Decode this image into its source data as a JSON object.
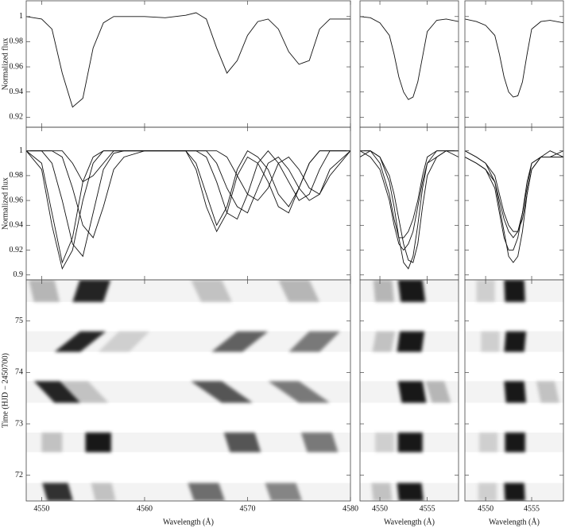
{
  "chart_data": [
    {
      "type": "line",
      "ylabel": "Normalized flux",
      "color": "#111111",
      "xlim": [
        4548.5,
        4580
      ],
      "xticks": [
        4550,
        4560,
        4570,
        4580
      ],
      "ylim": [
        0.912,
        1.0125
      ],
      "yticks": [
        0.92,
        0.94,
        0.96,
        0.98,
        1
      ],
      "x": [
        4548.5,
        4550,
        4551,
        4552,
        4553,
        4554,
        4555,
        4556,
        4557,
        4558,
        4560,
        4562,
        4564,
        4565,
        4566,
        4567,
        4568,
        4569,
        4570,
        4571,
        4572,
        4573,
        4574,
        4575,
        4576,
        4577,
        4578,
        4580
      ],
      "series": [
        {
          "values": [
            1,
            0.998,
            0.99,
            0.955,
            0.928,
            0.935,
            0.975,
            0.995,
            1,
            1,
            1,
            0.999,
            1.001,
            1.003,
            0.998,
            0.975,
            0.955,
            0.965,
            0.985,
            0.996,
            0.998,
            0.99,
            0.972,
            0.962,
            0.965,
            0.99,
            0.998,
            0.998
          ]
        }
      ]
    },
    {
      "type": "line",
      "color": "#111111",
      "xlim": [
        4547.9,
        4558.3
      ],
      "xticks": [
        4550,
        4555
      ],
      "ylim": [
        0.912,
        1.0125
      ],
      "yticks": [
        0.92,
        0.94,
        0.96,
        0.98,
        1
      ],
      "x": [
        4547.9,
        4549,
        4550,
        4551,
        4551.5,
        4552,
        4552.5,
        4553,
        4553.5,
        4554,
        4554.5,
        4555,
        4556,
        4557,
        4558.3
      ],
      "series": [
        {
          "values": [
            1,
            0.999,
            0.995,
            0.985,
            0.97,
            0.952,
            0.94,
            0.934,
            0.936,
            0.948,
            0.968,
            0.988,
            0.997,
            0.998,
            0.996
          ]
        }
      ]
    },
    {
      "type": "line",
      "color": "#111111",
      "xlim": [
        4547.75,
        4558.45
      ],
      "xticks": [
        4550,
        4555
      ],
      "ylim": [
        0.912,
        1.0125
      ],
      "yticks": [
        0.92,
        0.94,
        0.96,
        0.98,
        1
      ],
      "x": [
        4547.75,
        4549,
        4550,
        4551,
        4551.5,
        4552,
        4552.5,
        4553,
        4553.5,
        4554,
        4554.5,
        4555,
        4556,
        4557,
        4558.45
      ],
      "series": [
        {
          "values": [
            0.998,
            0.996,
            0.993,
            0.985,
            0.97,
            0.952,
            0.94,
            0.936,
            0.937,
            0.948,
            0.97,
            0.99,
            0.996,
            0.997,
            0.995
          ]
        }
      ]
    },
    {
      "type": "line",
      "ylabel": "Normalized flux",
      "color": "#111111",
      "xlim": [
        4548.5,
        4580
      ],
      "xticks": [
        4550,
        4560,
        4570,
        4580
      ],
      "ylim": [
        0.896,
        1.019
      ],
      "yticks": [
        0.9,
        0.92,
        0.94,
        0.96,
        0.98,
        1
      ],
      "x": [
        4548.5,
        4550,
        4551,
        4552,
        4553,
        4554,
        4555,
        4556,
        4557,
        4558,
        4560,
        4562,
        4564,
        4565,
        4566,
        4567,
        4568,
        4569,
        4570,
        4571,
        4572,
        4573,
        4574,
        4575,
        4576,
        4577,
        4578,
        4580
      ],
      "series": [
        {
          "values": [
            1,
            0.99,
            0.95,
            0.91,
            0.93,
            0.975,
            0.995,
            1,
            1,
            1,
            1,
            1,
            1,
            0.99,
            0.965,
            0.94,
            0.955,
            0.985,
            1,
            0.995,
            0.985,
            0.965,
            0.955,
            0.97,
            0.99,
            1,
            1,
            1
          ]
        },
        {
          "values": [
            1,
            1,
            0.99,
            0.96,
            0.925,
            0.915,
            0.95,
            0.985,
            0.998,
            1,
            1,
            1,
            1,
            1,
            0.995,
            0.975,
            0.95,
            0.945,
            0.965,
            0.99,
            1,
            0.99,
            0.975,
            0.96,
            0.965,
            0.985,
            1,
            1
          ]
        },
        {
          "values": [
            1,
            1,
            1,
            0.995,
            0.97,
            0.94,
            0.93,
            0.955,
            0.985,
            0.995,
            1,
            1,
            1,
            1,
            1,
            0.99,
            0.97,
            0.955,
            0.95,
            0.97,
            0.99,
            0.995,
            0.985,
            0.97,
            0.96,
            0.965,
            0.985,
            1
          ]
        },
        {
          "values": [
            1,
            0.985,
            0.94,
            0.905,
            0.92,
            0.96,
            0.99,
            1,
            1,
            1,
            1,
            1,
            1,
            0.985,
            0.955,
            0.935,
            0.95,
            0.98,
            0.995,
            0.99,
            0.975,
            0.955,
            0.95,
            0.97,
            0.99,
            1,
            1,
            1
          ]
        },
        {
          "values": [
            1,
            1,
            1,
            1,
            0.99,
            0.975,
            0.98,
            0.99,
            1,
            1,
            1,
            1,
            1,
            1,
            1,
            1,
            0.995,
            0.98,
            0.965,
            0.96,
            0.97,
            0.99,
            0.995,
            0.985,
            0.97,
            0.965,
            0.98,
            1
          ]
        }
      ]
    },
    {
      "type": "line",
      "color": "#111111",
      "xlim": [
        4547.9,
        4558.3
      ],
      "xticks": [
        4550,
        4555
      ],
      "ylim": [
        0.896,
        1.019
      ],
      "yticks": [
        0.9,
        0.92,
        0.94,
        0.96,
        0.98,
        1
      ],
      "x": [
        4547.9,
        4549,
        4550,
        4551,
        4551.5,
        4552,
        4552.5,
        4553,
        4553.5,
        4554,
        4554.5,
        4555,
        4556,
        4557,
        4558.3
      ],
      "series": [
        {
          "values": [
            1,
            1,
            0.995,
            0.975,
            0.955,
            0.93,
            0.91,
            0.905,
            0.915,
            0.94,
            0.97,
            0.99,
            1,
            1,
            1
          ]
        },
        {
          "values": [
            1,
            1,
            0.99,
            0.965,
            0.945,
            0.93,
            0.93,
            0.935,
            0.945,
            0.96,
            0.98,
            0.995,
            1,
            1,
            0.995
          ]
        },
        {
          "values": [
            1,
            0.995,
            0.985,
            0.96,
            0.94,
            0.925,
            0.92,
            0.925,
            0.935,
            0.955,
            0.975,
            0.99,
            0.995,
            1,
            1
          ]
        },
        {
          "values": [
            0.995,
            1,
            0.995,
            0.98,
            0.965,
            0.945,
            0.925,
            0.912,
            0.91,
            0.925,
            0.955,
            0.98,
            0.995,
            1,
            1
          ]
        }
      ]
    },
    {
      "type": "line",
      "color": "#111111",
      "xlim": [
        4547.75,
        4558.45
      ],
      "xticks": [
        4550,
        4555
      ],
      "ylim": [
        0.896,
        1.019
      ],
      "yticks": [
        0.9,
        0.92,
        0.94,
        0.96,
        0.98,
        1
      ],
      "x": [
        4547.75,
        4549,
        4550,
        4551,
        4551.5,
        4552,
        4552.5,
        4553,
        4553.5,
        4554,
        4554.5,
        4555,
        4556,
        4557,
        4558.45
      ],
      "series": [
        {
          "values": [
            0.995,
            0.99,
            0.985,
            0.975,
            0.955,
            0.935,
            0.915,
            0.91,
            0.915,
            0.935,
            0.965,
            0.985,
            0.995,
            0.995,
            0.995
          ]
        },
        {
          "values": [
            1,
            0.995,
            0.99,
            0.975,
            0.96,
            0.945,
            0.935,
            0.93,
            0.935,
            0.95,
            0.97,
            0.99,
            0.995,
            1,
            0.995
          ]
        },
        {
          "values": [
            0.995,
            0.99,
            0.985,
            0.97,
            0.95,
            0.93,
            0.92,
            0.92,
            0.93,
            0.95,
            0.975,
            0.99,
            0.995,
            0.995,
            1
          ]
        },
        {
          "values": [
            1,
            0.995,
            0.99,
            0.98,
            0.965,
            0.95,
            0.94,
            0.935,
            0.935,
            0.945,
            0.965,
            0.985,
            0.995,
            0.995,
            0.995
          ]
        }
      ]
    },
    {
      "type": "dynamic",
      "ylabel": "Time (HJD − 2450700)",
      "xlabel": "Wavelength (Å)",
      "color": "#000000",
      "xlim": [
        4548.5,
        4580
      ],
      "xticks": [
        4550,
        4560,
        4570,
        4580
      ],
      "ylim": [
        71.5,
        75.8
      ],
      "yticks": [
        72,
        73,
        74,
        75
      ],
      "blocks": [
        [
          75.37,
          75.8
        ],
        [
          74.4,
          74.8
        ],
        [
          73.41,
          73.83
        ],
        [
          72.45,
          72.83
        ],
        [
          71.5,
          71.85
        ]
      ],
      "features": [
        {
          "t0": 75.37,
          "t1": 75.8,
          "x0": 4554.5,
          "x1": 4555.2,
          "width": 3,
          "depth": 0.85
        },
        {
          "t0": 75.37,
          "t1": 75.8,
          "x0": 4550.5,
          "x1": 4550,
          "width": 2.5,
          "depth": 0.25
        },
        {
          "t0": 75.37,
          "t1": 75.8,
          "x0": 4567,
          "x1": 4566,
          "width": 3,
          "depth": 0.2
        },
        {
          "t0": 75.37,
          "t1": 75.8,
          "x0": 4575.5,
          "x1": 4574.5,
          "width": 3,
          "depth": 0.25
        },
        {
          "t0": 74.4,
          "t1": 74.8,
          "x0": 4552.5,
          "x1": 4555,
          "width": 2.5,
          "depth": 0.85
        },
        {
          "t0": 74.4,
          "t1": 74.8,
          "x0": 4568,
          "x1": 4570.5,
          "width": 3,
          "depth": 0.6
        },
        {
          "t0": 74.4,
          "t1": 74.8,
          "x0": 4575.5,
          "x1": 4577.5,
          "width": 3,
          "depth": 0.5
        },
        {
          "t0": 74.4,
          "t1": 74.8,
          "x0": 4557,
          "x1": 4559,
          "width": 3,
          "depth": 0.15
        },
        {
          "t0": 73.41,
          "t1": 73.83,
          "x0": 4552.5,
          "x1": 4550.5,
          "width": 2.5,
          "depth": 0.85
        },
        {
          "t0": 73.41,
          "t1": 73.83,
          "x0": 4569,
          "x1": 4566,
          "width": 3,
          "depth": 0.65
        },
        {
          "t0": 73.41,
          "t1": 73.83,
          "x0": 4576.5,
          "x1": 4573.5,
          "width": 3,
          "depth": 0.5
        },
        {
          "t0": 73.41,
          "t1": 73.83,
          "x0": 4555,
          "x1": 4553,
          "width": 3,
          "depth": 0.2
        },
        {
          "t0": 72.45,
          "t1": 72.83,
          "x0": 4555.5,
          "x1": 4555.5,
          "width": 2.5,
          "depth": 0.9
        },
        {
          "t0": 72.45,
          "t1": 72.83,
          "x0": 4569.8,
          "x1": 4569.2,
          "width": 3,
          "depth": 0.65
        },
        {
          "t0": 72.45,
          "t1": 72.83,
          "x0": 4577.3,
          "x1": 4576.7,
          "width": 3,
          "depth": 0.5
        },
        {
          "t0": 72.45,
          "t1": 72.83,
          "x0": 4551,
          "x1": 4551,
          "width": 2,
          "depth": 0.2
        },
        {
          "t0": 71.5,
          "t1": 71.85,
          "x0": 4551.8,
          "x1": 4551.3,
          "width": 2.5,
          "depth": 0.8
        },
        {
          "t0": 71.5,
          "t1": 71.85,
          "x0": 4566.3,
          "x1": 4565.7,
          "width": 3,
          "depth": 0.55
        },
        {
          "t0": 71.5,
          "t1": 71.85,
          "x0": 4573.8,
          "x1": 4573.2,
          "width": 3,
          "depth": 0.45
        },
        {
          "t0": 71.5,
          "t1": 71.85,
          "x0": 4556.2,
          "x1": 4555.8,
          "width": 2,
          "depth": 0.2
        }
      ]
    },
    {
      "type": "dynamic",
      "xlabel": "Wavelength (Å)",
      "color": "#000000",
      "xlim": [
        4547.9,
        4558.3
      ],
      "xticks": [
        4550,
        4555
      ],
      "ylim": [
        71.5,
        75.8
      ],
      "yticks": [
        72,
        73,
        74,
        75
      ],
      "blocks": [
        [
          75.37,
          75.8
        ],
        [
          74.4,
          74.8
        ],
        [
          73.41,
          73.83
        ],
        [
          72.45,
          72.83
        ],
        [
          71.5,
          71.85
        ]
      ],
      "features": [
        {
          "t0": 75.37,
          "t1": 75.8,
          "x0": 4553.5,
          "x1": 4553.2,
          "width": 2.6,
          "depth": 0.9
        },
        {
          "t0": 75.37,
          "t1": 75.8,
          "x0": 4550.5,
          "x1": 4550.3,
          "width": 2,
          "depth": 0.25
        },
        {
          "t0": 74.4,
          "t1": 74.8,
          "x0": 4553.1,
          "x1": 4553.4,
          "width": 2.6,
          "depth": 0.9
        },
        {
          "t0": 74.4,
          "t1": 74.8,
          "x0": 4550.2,
          "x1": 4550.6,
          "width": 2,
          "depth": 0.2
        },
        {
          "t0": 73.41,
          "t1": 73.83,
          "x0": 4553.6,
          "x1": 4553.2,
          "width": 2.6,
          "depth": 0.9
        },
        {
          "t0": 73.41,
          "t1": 73.83,
          "x0": 4556.5,
          "x1": 4555.8,
          "width": 2,
          "depth": 0.25
        },
        {
          "t0": 72.45,
          "t1": 72.83,
          "x0": 4553.2,
          "x1": 4553.2,
          "width": 2.6,
          "depth": 0.9
        },
        {
          "t0": 72.45,
          "t1": 72.83,
          "x0": 4550.5,
          "x1": 4550.5,
          "width": 2,
          "depth": 0.15
        },
        {
          "t0": 71.5,
          "t1": 71.85,
          "x0": 4553.3,
          "x1": 4553.1,
          "width": 2.6,
          "depth": 0.9
        },
        {
          "t0": 71.5,
          "t1": 71.85,
          "x0": 4550.3,
          "x1": 4550.1,
          "width": 2,
          "depth": 0.2
        }
      ]
    },
    {
      "type": "dynamic",
      "xlabel": "Wavelength (Å)",
      "color": "#000000",
      "xlim": [
        4547.75,
        4558.45
      ],
      "xticks": [
        4550,
        4555
      ],
      "ylim": [
        71.5,
        75.8
      ],
      "yticks": [
        72,
        73,
        74,
        75
      ],
      "blocks": [
        [
          75.37,
          75.8
        ],
        [
          74.4,
          74.8
        ],
        [
          73.41,
          73.83
        ],
        [
          72.45,
          72.83
        ],
        [
          71.5,
          71.85
        ]
      ],
      "features": [
        {
          "t0": 75.37,
          "t1": 75.8,
          "x0": 4553.2,
          "x1": 4553.1,
          "width": 2.2,
          "depth": 0.9
        },
        {
          "t0": 75.37,
          "t1": 75.8,
          "x0": 4550,
          "x1": 4550,
          "width": 2,
          "depth": 0.15
        },
        {
          "t0": 74.4,
          "t1": 74.8,
          "x0": 4553.1,
          "x1": 4553.3,
          "width": 2.2,
          "depth": 0.9
        },
        {
          "t0": 74.4,
          "t1": 74.8,
          "x0": 4550.5,
          "x1": 4550.5,
          "width": 2,
          "depth": 0.15
        },
        {
          "t0": 73.41,
          "t1": 73.83,
          "x0": 4553.3,
          "x1": 4553.1,
          "width": 2.2,
          "depth": 0.9
        },
        {
          "t0": 73.41,
          "t1": 73.83,
          "x0": 4557,
          "x1": 4556.5,
          "width": 2,
          "depth": 0.2
        },
        {
          "t0": 72.45,
          "t1": 72.83,
          "x0": 4553.2,
          "x1": 4553.2,
          "width": 2.2,
          "depth": 0.9
        },
        {
          "t0": 72.45,
          "t1": 72.83,
          "x0": 4550.3,
          "x1": 4550.3,
          "width": 2,
          "depth": 0.15
        },
        {
          "t0": 71.5,
          "t1": 71.85,
          "x0": 4553.2,
          "x1": 4553.1,
          "width": 2.2,
          "depth": 0.9
        },
        {
          "t0": 71.5,
          "t1": 71.85,
          "x0": 4550.2,
          "x1": 4550.2,
          "width": 2,
          "depth": 0.15
        }
      ]
    }
  ]
}
